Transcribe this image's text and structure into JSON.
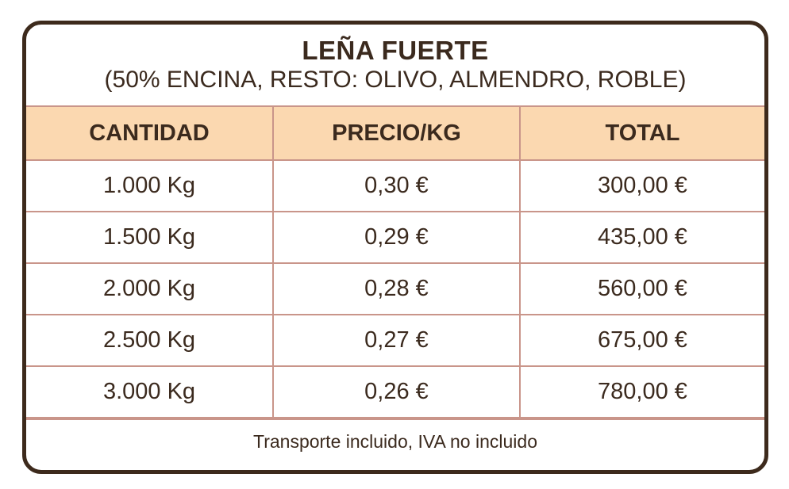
{
  "header": {
    "title": "LEÑA FUERTE",
    "subtitle": "(50% ENCINA, RESTO: OLIVO, ALMENDRO, ROBLE)"
  },
  "table": {
    "columns": [
      "CANTIDAD",
      "PRECIO/KG",
      "TOTAL"
    ],
    "rows": [
      [
        "1.000 Kg",
        "0,30 €",
        "300,00 €"
      ],
      [
        "1.500 Kg",
        "0,29 €",
        "435,00 €"
      ],
      [
        "2.000 Kg",
        "0,28 €",
        "560,00 €"
      ],
      [
        "2.500 Kg",
        "0,27 €",
        "675,00 €"
      ],
      [
        "3.000 Kg",
        "0,26 €",
        "780,00 €"
      ]
    ]
  },
  "footer": {
    "note": "Transporte incluido, IVA no incluido"
  },
  "colors": {
    "border": "#3d2a1c",
    "header_fill": "#fbd8b0",
    "grid": "#c9958a",
    "text": "#3b2a1e"
  }
}
